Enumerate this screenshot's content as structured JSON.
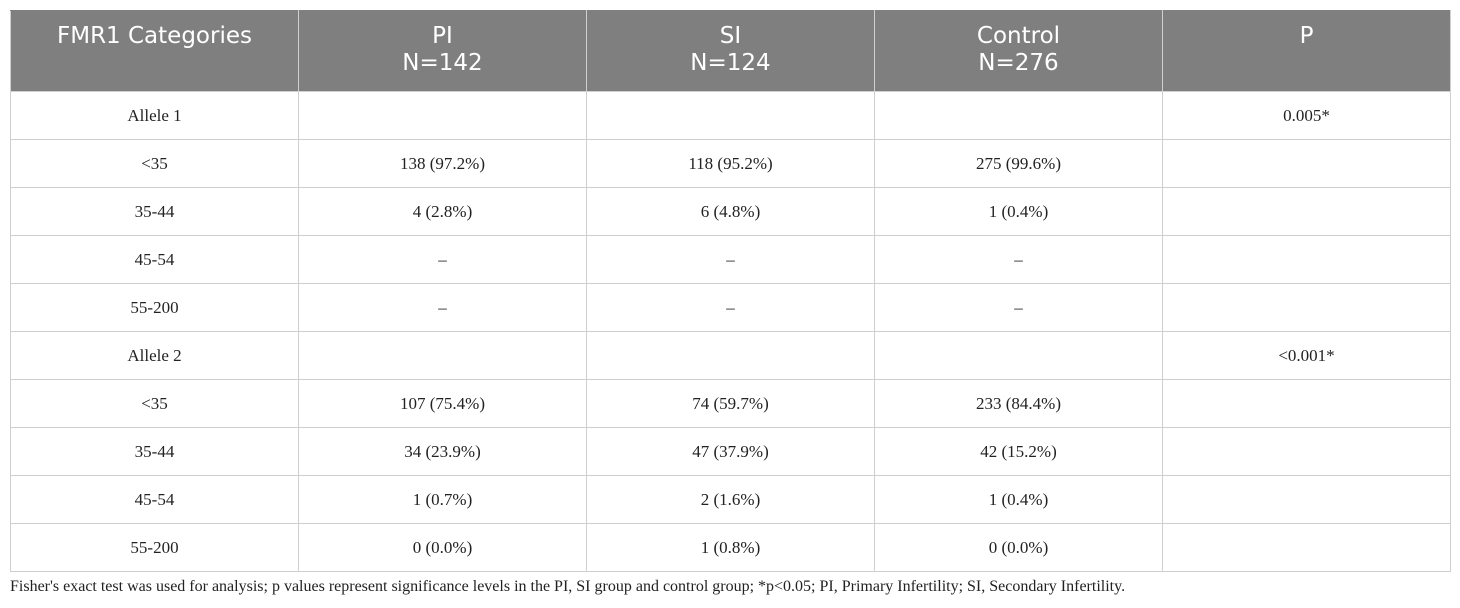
{
  "table": {
    "headers": [
      {
        "line1": "FMR1 Categories",
        "line2": ""
      },
      {
        "line1": "PI",
        "line2": "N=142"
      },
      {
        "line1": "SI",
        "line2": "N=124"
      },
      {
        "line1": "Control",
        "line2": "N=276"
      },
      {
        "line1": "P",
        "line2": ""
      }
    ],
    "rows": [
      [
        "Allele 1",
        "",
        "",
        "",
        "0.005*"
      ],
      [
        "<35",
        "138 (97.2%)",
        "118 (95.2%)",
        "275 (99.6%)",
        ""
      ],
      [
        "35-44",
        "4 (2.8%)",
        "6 (4.8%)",
        "1 (0.4%)",
        ""
      ],
      [
        "45-54",
        "–",
        "–",
        "–",
        ""
      ],
      [
        "55-200",
        "–",
        "–",
        "–",
        ""
      ],
      [
        "Allele 2",
        "",
        "",
        "",
        "<0.001*"
      ],
      [
        "<35",
        "107 (75.4%)",
        "74 (59.7%)",
        "233 (84.4%)",
        ""
      ],
      [
        "35-44",
        "34 (23.9%)",
        "47 (37.9%)",
        "42 (15.2%)",
        ""
      ],
      [
        "45-54",
        "1 (0.7%)",
        "2 (1.6%)",
        "1 (0.4%)",
        ""
      ],
      [
        "55-200",
        "0 (0.0%)",
        "1 (0.8%)",
        "0 (0.0%)",
        ""
      ]
    ]
  },
  "footnote": "Fisher's exact test was used for analysis; p values represent significance levels in the PI, SI group and control group; *p<0.05; PI, Primary Infertility; SI, Secondary Infertility.",
  "colors": {
    "header_bg": "#7f7f7f",
    "header_text": "#ffffff",
    "grid": "#cfcfcf"
  }
}
